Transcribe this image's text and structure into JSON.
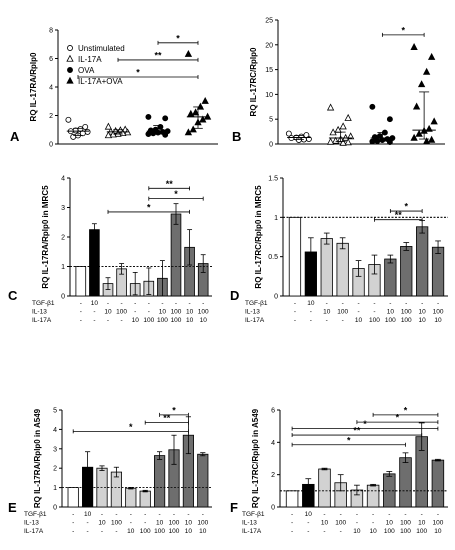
{
  "chart_data": [
    {
      "panel": "A",
      "type": "scatter",
      "ylabel": "RQ IL-17RA/Rplp0",
      "ylim": [
        0,
        8
      ],
      "yticks": [
        0,
        2,
        4,
        6,
        8
      ],
      "legend": {
        "entries": [
          {
            "label": "Unstimulated",
            "marker": "circle-open"
          },
          {
            "label": "IL-17A",
            "marker": "triangle-open"
          },
          {
            "label": "OVA",
            "marker": "circle-filled"
          },
          {
            "label": "IL-17A+OVA",
            "marker": "triangle-filled"
          }
        ]
      },
      "groups": [
        {
          "name": "Unstimulated",
          "marker": "circle-open",
          "median": 0.9,
          "iqr": [
            0.6,
            1.1
          ],
          "points": [
            1.7,
            1.2,
            1.05,
            0.95,
            0.9,
            0.85,
            0.75,
            0.6,
            0.5
          ]
        },
        {
          "name": "IL-17A",
          "marker": "triangle-open",
          "median": 0.85,
          "iqr": [
            0.7,
            1.0
          ],
          "points": [
            1.2,
            1.0,
            0.95,
            0.9,
            0.85,
            0.8,
            0.75,
            0.7,
            0.65,
            0.6
          ]
        },
        {
          "name": "OVA",
          "marker": "circle-filled",
          "median": 0.9,
          "iqr": [
            0.7,
            1.3
          ],
          "points": [
            1.9,
            1.8,
            1.2,
            1.0,
            0.95,
            0.9,
            0.85,
            0.8,
            0.75,
            0.7,
            0.65
          ]
        },
        {
          "name": "IL-17A+OVA",
          "marker": "triangle-filled",
          "median": 1.9,
          "iqr": [
            1.1,
            2.6
          ],
          "points": [
            6.3,
            3.0,
            2.6,
            2.2,
            2.1,
            1.9,
            1.7,
            1.5,
            1.0,
            0.8
          ]
        }
      ],
      "significance": [
        {
          "from": 2,
          "to": 3,
          "label": "*",
          "y": 7.1
        },
        {
          "from": 1,
          "to": 3,
          "label": "**",
          "y": 5.9
        },
        {
          "from": 0,
          "to": 3,
          "label": "*",
          "y": 4.7
        }
      ]
    },
    {
      "panel": "B",
      "type": "scatter",
      "ylabel": "RQ IL-17RC/Rplp0",
      "ylim": [
        0,
        25
      ],
      "yticks": [
        0,
        5,
        10,
        15,
        20,
        25
      ],
      "groups": [
        {
          "name": "Unstimulated",
          "marker": "circle-open",
          "median": 1.3,
          "iqr": [
            0.9,
            1.7
          ],
          "points": [
            2.1,
            1.8,
            1.5,
            1.3,
            1.2,
            1.0,
            0.9,
            0.8
          ]
        },
        {
          "name": "IL-17A",
          "marker": "triangle-open",
          "median": 1.2,
          "iqr": [
            0.5,
            2.4
          ],
          "points": [
            7.3,
            5.2,
            3.5,
            2.8,
            2.3,
            1.5,
            1.2,
            0.9,
            0.6,
            0.4,
            0.3,
            0.2
          ]
        },
        {
          "name": "OVA",
          "marker": "circle-filled",
          "median": 1.2,
          "iqr": [
            0.6,
            2.3
          ],
          "points": [
            7.5,
            5.0,
            2.3,
            1.6,
            1.4,
            1.2,
            1.0,
            0.8,
            0.6,
            0.5,
            0.4
          ]
        },
        {
          "name": "IL-17A+OVA",
          "marker": "triangle-filled",
          "median": 2.8,
          "iqr": [
            1.0,
            10.5
          ],
          "points": [
            19.5,
            17.5,
            14.5,
            12.0,
            7.5,
            4.5,
            3.0,
            2.6,
            2.0,
            1.2,
            0.8,
            0.5
          ]
        }
      ],
      "significance": [
        {
          "from": 2,
          "to": 3,
          "label": "*",
          "y": 22.0
        }
      ]
    },
    {
      "panel": "C",
      "type": "bar",
      "ylabel": "RQ IL-17RA/Rplp0 in MRC5",
      "ylim": [
        0,
        4
      ],
      "yticks": [
        0,
        1,
        2,
        3,
        4
      ],
      "refline": 1,
      "rows": [
        {
          "label": "TGF-β1",
          "values": [
            "-",
            "10",
            "-",
            "-",
            "-",
            "-",
            "-",
            "-",
            "-",
            "-"
          ]
        },
        {
          "label": "IL-13",
          "values": [
            "-",
            "-",
            "10",
            "100",
            "-",
            "-",
            "10",
            "100",
            "10",
            "100"
          ]
        },
        {
          "label": "IL-17A",
          "values": [
            "-",
            "-",
            "-",
            "-",
            "10",
            "100",
            "100",
            "100",
            "10",
            "10"
          ]
        }
      ],
      "bars": [
        {
          "value": 1.0,
          "err": 0,
          "color": "white"
        },
        {
          "value": 2.25,
          "err": 0.2,
          "color": "black"
        },
        {
          "value": 0.42,
          "err": 0.2,
          "color": "light"
        },
        {
          "value": 0.92,
          "err": 0.18,
          "color": "light"
        },
        {
          "value": 0.42,
          "err": 0.38,
          "color": "light"
        },
        {
          "value": 0.5,
          "err": 0.45,
          "color": "light"
        },
        {
          "value": 0.6,
          "err": 0.6,
          "color": "dark"
        },
        {
          "value": 2.78,
          "err": 0.35,
          "color": "dark"
        },
        {
          "value": 1.65,
          "err": 0.6,
          "color": "dark"
        },
        {
          "value": 1.1,
          "err": 0.3,
          "color": "dark"
        }
      ],
      "significance": [
        {
          "from": 5,
          "to": 8,
          "label": "**",
          "y": 3.65
        },
        {
          "from": 5,
          "to": 9,
          "label": "*",
          "y": 3.3
        },
        {
          "from": 2,
          "to": 8,
          "label": "*",
          "y": 2.85
        }
      ]
    },
    {
      "panel": "D",
      "type": "bar",
      "ylabel": "RQ IL-17RC/Rplp0 in MRC5",
      "ylim": [
        0,
        1.5
      ],
      "yticks": [
        0,
        0.5,
        1.0,
        1.5
      ],
      "refline": 1,
      "rows": [
        {
          "label": "TGF-β1",
          "values": [
            "-",
            "10",
            "-",
            "-",
            "-",
            "-",
            "-",
            "-",
            "-",
            "-"
          ]
        },
        {
          "label": "IL-13",
          "values": [
            "-",
            "-",
            "10",
            "100",
            "-",
            "-",
            "10",
            "100",
            "10",
            "100"
          ]
        },
        {
          "label": "IL-17A",
          "values": [
            "-",
            "-",
            "-",
            "-",
            "10",
            "100",
            "100",
            "100",
            "10",
            "10"
          ]
        }
      ],
      "bars": [
        {
          "value": 1.0,
          "err": 0,
          "color": "white"
        },
        {
          "value": 0.56,
          "err": 0.18,
          "color": "black"
        },
        {
          "value": 0.73,
          "err": 0.07,
          "color": "light"
        },
        {
          "value": 0.67,
          "err": 0.07,
          "color": "light"
        },
        {
          "value": 0.35,
          "err": 0.1,
          "color": "light"
        },
        {
          "value": 0.4,
          "err": 0.12,
          "color": "light"
        },
        {
          "value": 0.47,
          "err": 0.05,
          "color": "dark"
        },
        {
          "value": 0.63,
          "err": 0.05,
          "color": "dark"
        },
        {
          "value": 0.88,
          "err": 0.08,
          "color": "dark"
        },
        {
          "value": 0.62,
          "err": 0.08,
          "color": "dark"
        }
      ],
      "significance": [
        {
          "from": 6,
          "to": 8,
          "label": "*",
          "y": 1.08
        },
        {
          "from": 5,
          "to": 8,
          "label": "**",
          "y": 0.97
        }
      ]
    },
    {
      "panel": "E",
      "type": "bar",
      "ylabel": "RQ IL-17RA/Rplp0 in A549",
      "ylim": [
        0,
        5
      ],
      "yticks": [
        0,
        1,
        2,
        3,
        4,
        5
      ],
      "refline": 1,
      "rows": [
        {
          "label": "TGF-β1",
          "values": [
            "-",
            "10",
            "-",
            "-",
            "-",
            "-",
            "-",
            "-",
            "-",
            "-"
          ]
        },
        {
          "label": "IL-13",
          "values": [
            "-",
            "-",
            "10",
            "100",
            "-",
            "-",
            "10",
            "100",
            "10",
            "100"
          ]
        },
        {
          "label": "IL-17A",
          "values": [
            "-",
            "-",
            "-",
            "-",
            "10",
            "100",
            "100",
            "100",
            "10",
            "10"
          ]
        }
      ],
      "bars": [
        {
          "value": 1.0,
          "err": 0,
          "color": "white"
        },
        {
          "value": 2.05,
          "err": 0.8,
          "color": "black"
        },
        {
          "value": 2.0,
          "err": 0.12,
          "color": "light"
        },
        {
          "value": 1.8,
          "err": 0.25,
          "color": "light"
        },
        {
          "value": 0.97,
          "err": 0.04,
          "color": "light"
        },
        {
          "value": 0.82,
          "err": 0.04,
          "color": "light"
        },
        {
          "value": 2.65,
          "err": 0.2,
          "color": "dark"
        },
        {
          "value": 2.95,
          "err": 0.75,
          "color": "dark"
        },
        {
          "value": 3.7,
          "err": 0.95,
          "color": "dark"
        },
        {
          "value": 2.72,
          "err": 0.08,
          "color": "dark"
        }
      ],
      "significance": [
        {
          "from": 6,
          "to": 8,
          "label": "*",
          "y": 4.75
        },
        {
          "from": 5,
          "to": 8,
          "label": "**",
          "y": 4.35
        },
        {
          "from": 0,
          "to": 8,
          "label": "*",
          "y": 3.9
        }
      ]
    },
    {
      "panel": "F",
      "type": "bar",
      "ylabel": "RQ IL-17RC/Rplp0 in A549",
      "ylim": [
        0,
        6
      ],
      "yticks": [
        0,
        2,
        4,
        6
      ],
      "refline": 1,
      "rows": [
        {
          "label": "TGF-β1",
          "values": [
            "-",
            "10",
            "-",
            "-",
            "-",
            "-",
            "-",
            "-",
            "-",
            "-"
          ]
        },
        {
          "label": "IL-13",
          "values": [
            "-",
            "-",
            "10",
            "100",
            "-",
            "-",
            "10",
            "100",
            "10",
            "100"
          ]
        },
        {
          "label": "IL-17A",
          "values": [
            "-",
            "-",
            "-",
            "-",
            "10",
            "10",
            "100",
            "100",
            "100",
            "10"
          ]
        }
      ],
      "bars": [
        {
          "value": 1.0,
          "err": 0,
          "color": "white"
        },
        {
          "value": 1.4,
          "err": 0.35,
          "color": "black"
        },
        {
          "value": 2.35,
          "err": 0.05,
          "color": "light"
        },
        {
          "value": 1.5,
          "err": 0.5,
          "color": "light"
        },
        {
          "value": 1.05,
          "err": 0.3,
          "color": "light"
        },
        {
          "value": 1.35,
          "err": 0.05,
          "color": "light"
        },
        {
          "value": 2.05,
          "err": 0.15,
          "color": "dark"
        },
        {
          "value": 3.05,
          "err": 0.3,
          "color": "dark"
        },
        {
          "value": 4.35,
          "err": 0.85,
          "color": "dark"
        },
        {
          "value": 2.9,
          "err": 0.05,
          "color": "dark"
        }
      ],
      "significance": [
        {
          "from": 5,
          "to": 9,
          "label": "*",
          "y": 5.7
        },
        {
          "from": 4,
          "to": 9,
          "label": "*",
          "y": 5.25
        },
        {
          "from": 0,
          "to": 9,
          "label": "*",
          "y": 4.85
        },
        {
          "from": 0,
          "to": 8,
          "label": "**",
          "y": 4.45
        },
        {
          "from": 0,
          "to": 7,
          "label": "*",
          "y": 3.85
        }
      ]
    }
  ],
  "colors": {
    "white": "#ffffff",
    "black": "#000000",
    "light": "#d2d2d2",
    "dark": "#6e6e6e"
  }
}
